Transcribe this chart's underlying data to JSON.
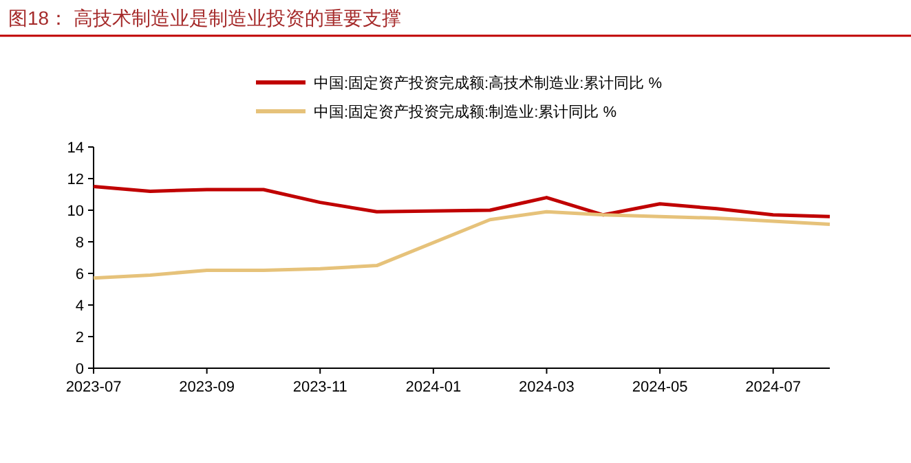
{
  "chart_data": {
    "type": "line",
    "title": "图18：  高技术制造业是制造业投资的重要支撑",
    "legend": "top",
    "x": [
      "2023-07",
      "2023-08",
      "2023-09",
      "2023-10",
      "2023-11",
      "2023-12",
      "2024-02",
      "2024-03",
      "2024-04",
      "2024-05",
      "2024-06",
      "2024-07",
      "2024-08"
    ],
    "series": [
      {
        "name": "中国:固定资产投资完成额:高技术制造业:累计同比 %",
        "color": "#c00000",
        "values": [
          11.5,
          11.2,
          11.3,
          11.3,
          10.5,
          9.9,
          10.0,
          10.8,
          9.7,
          10.4,
          10.1,
          9.7,
          9.6
        ]
      },
      {
        "name": "中国:固定资产投资完成额:制造业:累计同比 %",
        "color": "#e6c27a",
        "values": [
          5.7,
          5.9,
          6.2,
          6.2,
          6.3,
          6.5,
          9.4,
          9.9,
          9.7,
          9.6,
          9.5,
          9.3,
          9.1
        ]
      }
    ],
    "xlim": [
      "2023-07",
      "2024-08"
    ],
    "xticks": [
      "2023-07",
      "2023-09",
      "2023-11",
      "2024-01",
      "2024-03",
      "2024-05",
      "2024-07"
    ],
    "ylim": [
      0,
      14
    ],
    "yticks": [
      0,
      2,
      4,
      6,
      8,
      10,
      12,
      14
    ]
  }
}
